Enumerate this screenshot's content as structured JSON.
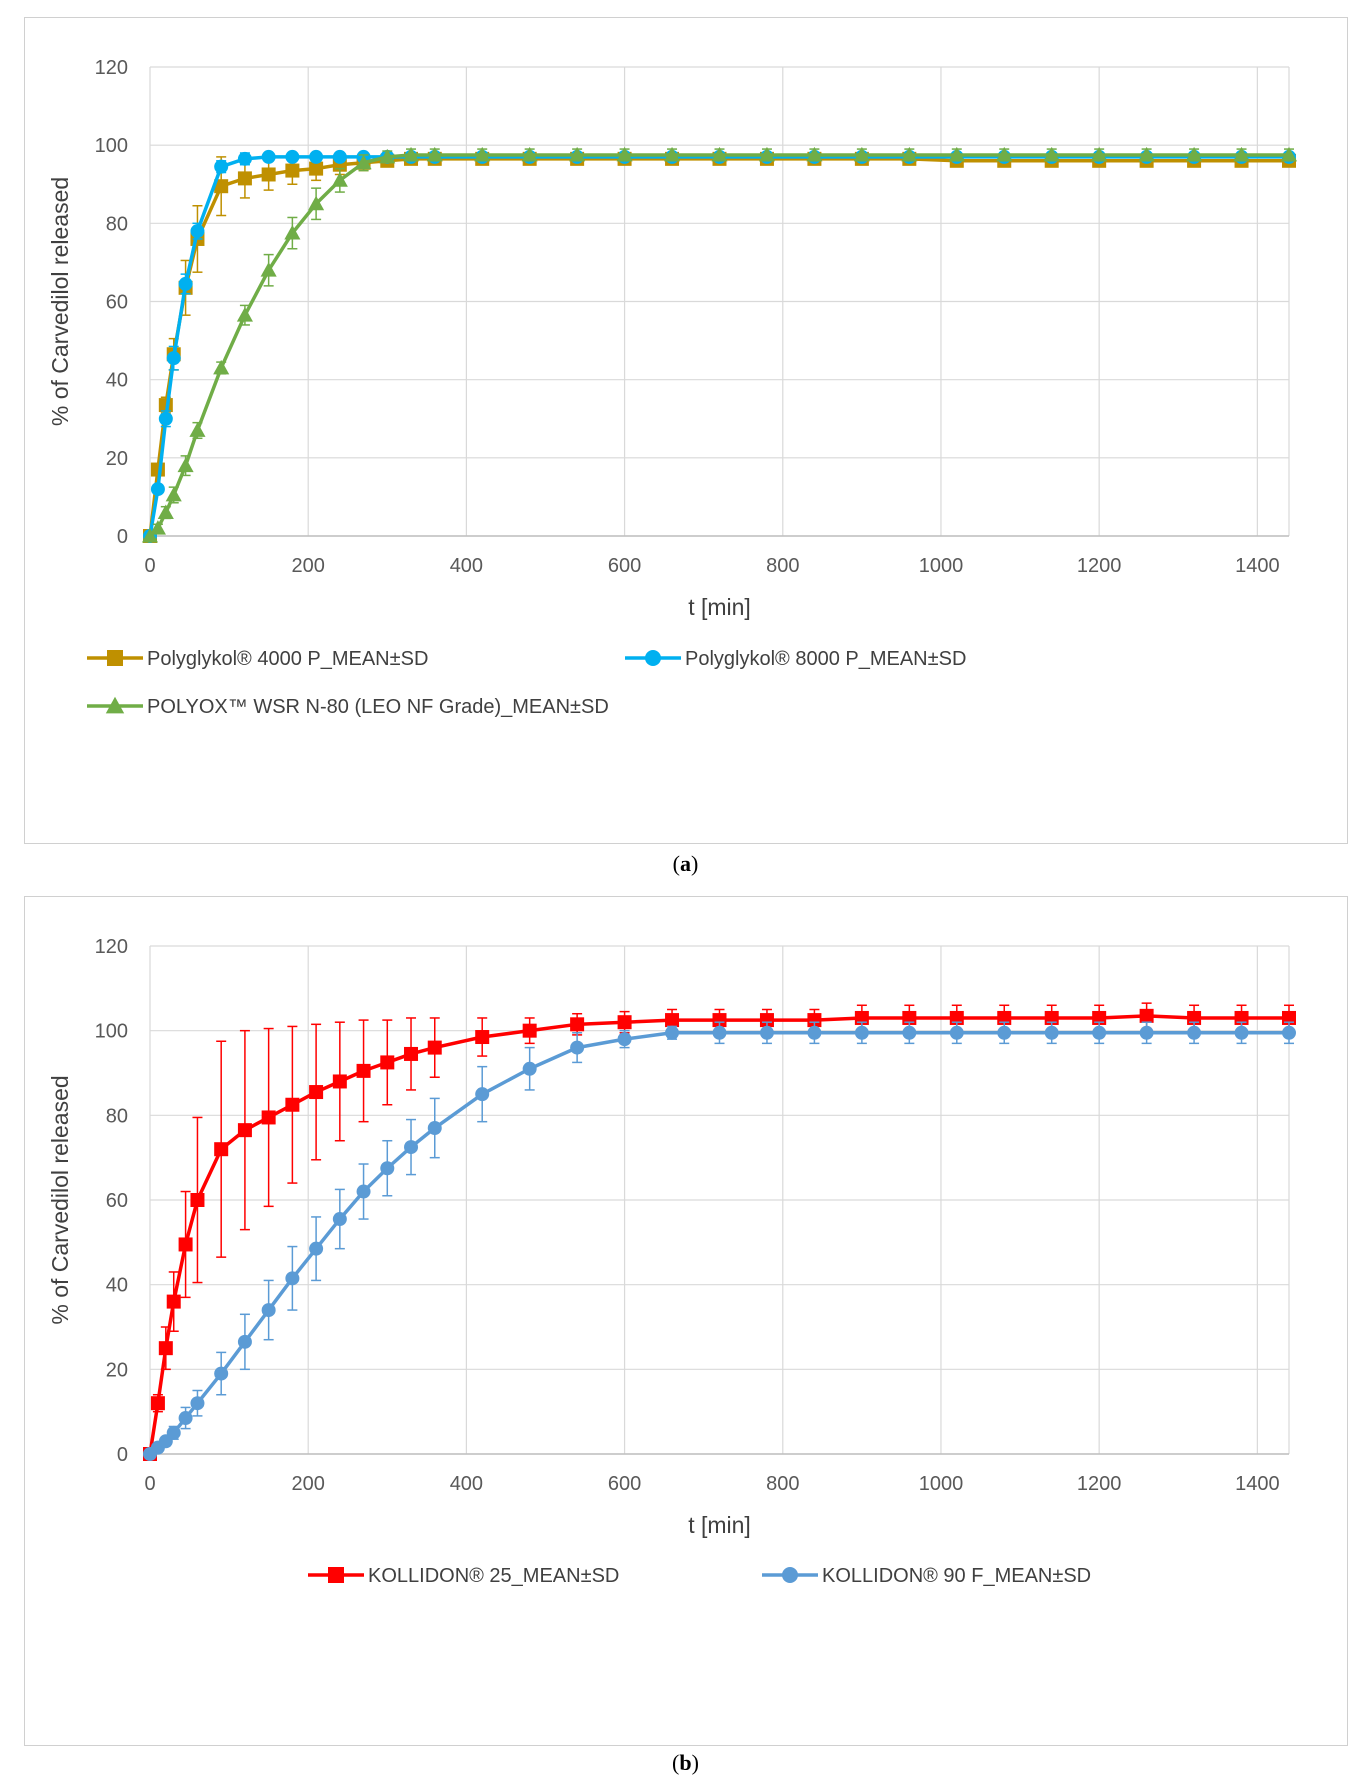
{
  "figure": {
    "caption_a": "a",
    "caption_b": "b"
  },
  "chart_data": [
    {
      "type": "line",
      "panel": "a",
      "xlabel": "t [min]",
      "ylabel": "% of Carvedilol released",
      "xlim": [
        0,
        1440
      ],
      "ylim": [
        0,
        120
      ],
      "xticks": [
        0,
        200,
        400,
        600,
        800,
        1000,
        1200,
        1400
      ],
      "yticks": [
        0,
        20,
        40,
        60,
        80,
        100,
        120
      ],
      "grid": true,
      "legend_position": "bottom",
      "series": [
        {
          "name": "Polyglykol® 4000 P_MEAN±SD",
          "color": "#bf9000",
          "marker": "square",
          "x": [
            0,
            10,
            20,
            30,
            45,
            60,
            90,
            120,
            150,
            180,
            210,
            240,
            270,
            300,
            330,
            360,
            420,
            480,
            540,
            600,
            660,
            720,
            780,
            840,
            900,
            960,
            1020,
            1080,
            1140,
            1200,
            1260,
            1320,
            1380,
            1440
          ],
          "y": [
            0,
            17,
            33.5,
            46.5,
            63.5,
            76,
            89.5,
            91.5,
            92.5,
            93.5,
            94,
            95,
            95.5,
            96,
            96.5,
            96.5,
            96.5,
            96.5,
            96.5,
            96.5,
            96.5,
            96.5,
            96.5,
            96.5,
            96.5,
            96.5,
            96,
            96,
            96,
            96,
            96,
            96,
            96,
            96
          ],
          "sd": [
            0,
            1.5,
            2,
            4,
            7,
            8.5,
            7.5,
            5,
            4,
            3.5,
            3,
            2.5,
            2,
            1.5,
            1.5,
            1.5,
            1.5,
            1.5,
            1.5,
            1.5,
            1.5,
            1.5,
            1.5,
            1.5,
            1.5,
            1.5,
            1.5,
            1.5,
            1.5,
            1.5,
            1.5,
            1.5,
            1.5,
            1.5
          ]
        },
        {
          "name": "Polyglykol® 8000 P_MEAN±SD",
          "color": "#00b0f0",
          "marker": "circle",
          "x": [
            0,
            10,
            20,
            30,
            45,
            60,
            90,
            120,
            150,
            180,
            210,
            240,
            270,
            300,
            330,
            360,
            420,
            480,
            540,
            600,
            660,
            720,
            780,
            840,
            900,
            960,
            1020,
            1080,
            1140,
            1200,
            1260,
            1320,
            1380,
            1440
          ],
          "y": [
            0,
            12,
            30,
            45.5,
            64.5,
            78,
            94.5,
            96.5,
            97,
            97,
            97,
            97,
            97,
            97,
            97,
            97,
            97,
            97,
            97,
            97,
            97,
            97,
            97,
            97,
            97,
            97,
            97,
            97,
            97,
            97,
            97,
            97,
            97,
            97
          ],
          "sd": [
            0,
            1,
            2,
            3,
            2.5,
            2,
            1.5,
            1.5,
            1,
            1,
            1,
            1,
            1,
            1,
            1,
            1,
            1,
            1,
            1,
            1,
            1,
            1,
            1,
            1,
            1,
            1,
            1,
            1,
            1,
            1,
            1,
            1,
            1,
            1
          ]
        },
        {
          "name": "POLYOX™ WSR N-80 (LEO NF Grade)_MEAN±SD",
          "color": "#70ad47",
          "marker": "triangle",
          "x": [
            0,
            10,
            20,
            30,
            45,
            60,
            90,
            120,
            150,
            180,
            210,
            240,
            270,
            300,
            330,
            360,
            420,
            480,
            540,
            600,
            660,
            720,
            780,
            840,
            900,
            960,
            1020,
            1080,
            1140,
            1200,
            1260,
            1320,
            1380,
            1440
          ],
          "y": [
            0,
            2,
            6,
            10.5,
            18,
            27,
            43,
            56.5,
            68,
            77.5,
            85,
            91,
            95.5,
            97,
            97.5,
            97.5,
            97.5,
            97.5,
            97.5,
            97.5,
            97.5,
            97.5,
            97.5,
            97.5,
            97.5,
            97.5,
            97.5,
            97.5,
            97.5,
            97.5,
            97.5,
            97.5,
            97.5,
            97.5
          ],
          "sd": [
            0,
            1,
            1.5,
            2,
            2.5,
            2,
            1.5,
            2.5,
            4,
            4,
            4,
            3,
            2,
            1.5,
            1.5,
            1.5,
            1.5,
            1.5,
            1.5,
            1.5,
            1.5,
            1.5,
            1.5,
            1.5,
            1.5,
            1.5,
            1.5,
            1.5,
            1.5,
            1.5,
            1.5,
            1.5,
            1.5,
            1.5
          ]
        }
      ]
    },
    {
      "type": "line",
      "panel": "b",
      "xlabel": "t [min]",
      "ylabel": "% of Carvedilol released",
      "xlim": [
        0,
        1440
      ],
      "ylim": [
        0,
        120
      ],
      "xticks": [
        0,
        200,
        400,
        600,
        800,
        1000,
        1200,
        1400
      ],
      "yticks": [
        0,
        20,
        40,
        60,
        80,
        100,
        120
      ],
      "grid": true,
      "legend_position": "bottom",
      "series": [
        {
          "name": "KOLLIDON® 25_MEAN±SD",
          "color": "#ff0000",
          "marker": "square",
          "x": [
            0,
            10,
            20,
            30,
            45,
            60,
            90,
            120,
            150,
            180,
            210,
            240,
            270,
            300,
            330,
            360,
            420,
            480,
            540,
            600,
            660,
            720,
            780,
            840,
            900,
            960,
            1020,
            1080,
            1140,
            1200,
            1260,
            1320,
            1380,
            1440
          ],
          "y": [
            0,
            12,
            25,
            36,
            49.5,
            60,
            72,
            76.5,
            79.5,
            82.5,
            85.5,
            88,
            90.5,
            92.5,
            94.5,
            96,
            98.5,
            100,
            101.5,
            102,
            102.5,
            102.5,
            102.5,
            102.5,
            103,
            103,
            103,
            103,
            103,
            103,
            103.5,
            103,
            103,
            103
          ],
          "sd": [
            0,
            2,
            5,
            7,
            12.5,
            19.5,
            25.5,
            23.5,
            21,
            18.5,
            16,
            14,
            12,
            10,
            8.5,
            7,
            4.5,
            3,
            2.5,
            2.5,
            2.5,
            2.5,
            2.5,
            2.5,
            3,
            3,
            3,
            3,
            3,
            3,
            3,
            3,
            3,
            3
          ]
        },
        {
          "name": "KOLLIDON® 90 F_MEAN±SD",
          "color": "#5b9bd5",
          "marker": "circle",
          "x": [
            0,
            10,
            20,
            30,
            45,
            60,
            90,
            120,
            150,
            180,
            210,
            240,
            270,
            300,
            330,
            360,
            420,
            480,
            540,
            600,
            660,
            720,
            780,
            840,
            900,
            960,
            1020,
            1080,
            1140,
            1200,
            1260,
            1320,
            1380,
            1440
          ],
          "y": [
            0,
            1.5,
            3,
            5,
            8.5,
            12,
            19,
            26.5,
            34,
            41.5,
            48.5,
            55.5,
            62,
            67.5,
            72.5,
            77,
            85,
            91,
            96,
            98,
            99.5,
            99.5,
            99.5,
            99.5,
            99.5,
            99.5,
            99.5,
            99.5,
            99.5,
            99.5,
            99.5,
            99.5,
            99.5,
            99.5
          ],
          "sd": [
            0,
            0.5,
            1,
            1.5,
            2.5,
            3,
            5,
            6.5,
            7,
            7.5,
            7.5,
            7,
            6.5,
            6.5,
            6.5,
            7,
            6.5,
            5,
            3.5,
            2,
            1.5,
            2.5,
            2.5,
            2.5,
            2.5,
            2.5,
            2.5,
            2.5,
            2.5,
            2.5,
            2.5,
            2.5,
            2.5,
            2.5
          ]
        }
      ]
    }
  ]
}
